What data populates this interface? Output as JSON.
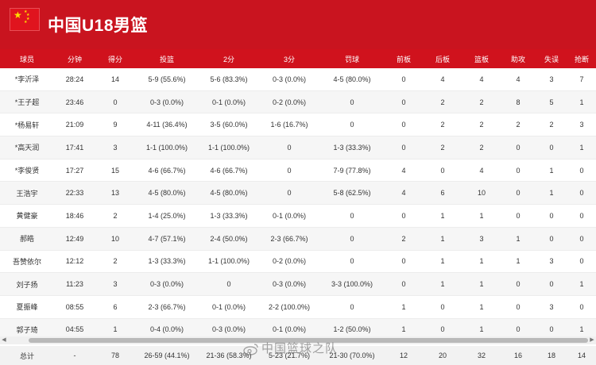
{
  "team": {
    "name": "中国U18男篮"
  },
  "columns": [
    "球员",
    "分钟",
    "得分",
    "投篮",
    "2分",
    "3分",
    "罚球",
    "前板",
    "后板",
    "篮板",
    "助攻",
    "失误",
    "抢断"
  ],
  "players": [
    [
      "*李沂泽",
      "28:24",
      "14",
      "5-9 (55.6%)",
      "5-6 (83.3%)",
      "0-3 (0.0%)",
      "4-5 (80.0%)",
      "0",
      "4",
      "4",
      "4",
      "3",
      "7"
    ],
    [
      "*王子超",
      "23:46",
      "0",
      "0-3 (0.0%)",
      "0-1 (0.0%)",
      "0-2 (0.0%)",
      "0",
      "0",
      "2",
      "2",
      "8",
      "5",
      "1"
    ],
    [
      "*杨易轩",
      "21:09",
      "9",
      "4-11 (36.4%)",
      "3-5 (60.0%)",
      "1-6 (16.7%)",
      "0",
      "0",
      "2",
      "2",
      "2",
      "2",
      "3"
    ],
    [
      "*高天润",
      "17:41",
      "3",
      "1-1 (100.0%)",
      "1-1 (100.0%)",
      "0",
      "1-3 (33.3%)",
      "0",
      "2",
      "2",
      "0",
      "0",
      "1"
    ],
    [
      "*李俊贤",
      "17:27",
      "15",
      "4-6 (66.7%)",
      "4-6 (66.7%)",
      "0",
      "7-9 (77.8%)",
      "4",
      "0",
      "4",
      "0",
      "1",
      "0"
    ],
    [
      "王浩宇",
      "22:33",
      "13",
      "4-5 (80.0%)",
      "4-5 (80.0%)",
      "0",
      "5-8 (62.5%)",
      "4",
      "6",
      "10",
      "0",
      "1",
      "0"
    ],
    [
      "黄健豪",
      "18:46",
      "2",
      "1-4 (25.0%)",
      "1-3 (33.3%)",
      "0-1 (0.0%)",
      "0",
      "0",
      "1",
      "1",
      "0",
      "0",
      "0"
    ],
    [
      "郝皓",
      "12:49",
      "10",
      "4-7 (57.1%)",
      "2-4 (50.0%)",
      "2-3 (66.7%)",
      "0",
      "2",
      "1",
      "3",
      "1",
      "0",
      "0"
    ],
    [
      "吾赞依尔",
      "12:12",
      "2",
      "1-3 (33.3%)",
      "1-1 (100.0%)",
      "0-2 (0.0%)",
      "0",
      "0",
      "1",
      "1",
      "1",
      "3",
      "0"
    ],
    [
      "刘子扬",
      "11:23",
      "3",
      "0-3 (0.0%)",
      "0",
      "0-3 (0.0%)",
      "3-3 (100.0%)",
      "0",
      "1",
      "1",
      "0",
      "0",
      "1"
    ],
    [
      "夏振峰",
      "08:55",
      "6",
      "2-3 (66.7%)",
      "0-1 (0.0%)",
      "2-2 (100.0%)",
      "0",
      "1",
      "0",
      "1",
      "0",
      "3",
      "0"
    ],
    [
      "郭子琦",
      "04:55",
      "1",
      "0-4 (0.0%)",
      "0-3 (0.0%)",
      "0-1 (0.0%)",
      "1-2 (50.0%)",
      "1",
      "0",
      "1",
      "0",
      "0",
      "1"
    ]
  ],
  "totals": [
    "总计",
    "-",
    "78",
    "26-59 (44.1%)",
    "21-36 (58.3%)",
    "5-23 (21.7%)",
    "21-30 (70.0%)",
    "12",
    "20",
    "32",
    "16",
    "18",
    "14"
  ],
  "watermark": "中国篮球之队",
  "colors": {
    "header_red": "#c9141f",
    "column_header_red": "#d0121d",
    "flag_star": "#ffde00"
  },
  "icons": {
    "flag": "china-flag-icon",
    "watermark_logo": "weibo-icon"
  }
}
